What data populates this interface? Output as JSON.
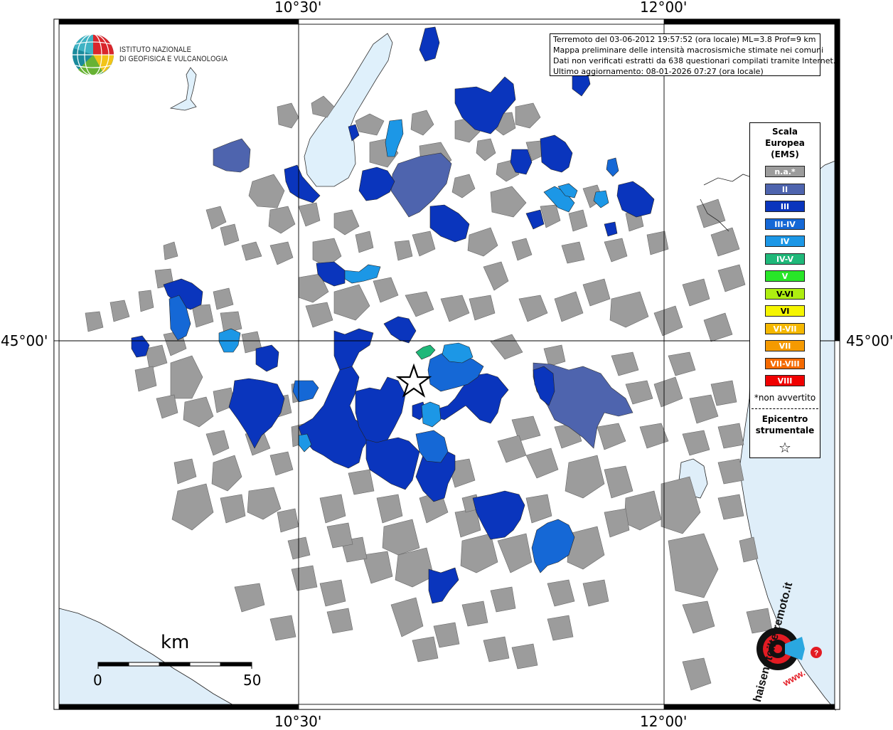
{
  "title_lines": [
    "Terremoto del 03-06-2012 19:57:52 (ora locale) ML=3.8 Prof=9 km",
    "Mappa preliminare delle intensità macrosismiche stimate nei comuni",
    "Dati non verificati estratti da 638 questionari compilati tramite Internet.",
    "Ultimo aggiornamento: 08-01-2026 07:27 (ora locale)"
  ],
  "ingv_logo": {
    "line1": "ISTITUTO NAZIONALE",
    "line2": "DI GEOFISICA E VULCANOLOGIA"
  },
  "axes": {
    "lon_ticks": [
      "10°30'",
      "12°00'"
    ],
    "lat_ticks": [
      "45°00'"
    ]
  },
  "legend": {
    "title_lines": [
      "Scala",
      "Europea",
      "(EMS)"
    ],
    "items": [
      {
        "label": "n.a.*",
        "color": "#9c9c9c"
      },
      {
        "label": "II",
        "color": "#4e64ae"
      },
      {
        "label": "III",
        "color": "#0a35bd"
      },
      {
        "label": "III-IV",
        "color": "#1568d6"
      },
      {
        "label": "IV",
        "color": "#1c97e6"
      },
      {
        "label": "IV-V",
        "color": "#1fb879"
      },
      {
        "label": "V",
        "color": "#28e628"
      },
      {
        "label": "V-VI",
        "color": "#aeee10"
      },
      {
        "label": "VI",
        "color": "#f5f500"
      },
      {
        "label": "VI-VII",
        "color": "#f5b800"
      },
      {
        "label": "VII",
        "color": "#f59a00"
      },
      {
        "label": "VII-VIII",
        "color": "#f56a00"
      },
      {
        "label": "VIII",
        "color": "#f00000"
      }
    ],
    "note": "*non avvertito",
    "epicenter_lines": [
      "Epicentro",
      "strumentale"
    ],
    "epicenter_symbol": "☆"
  },
  "scalebar": {
    "unit": "km",
    "start": "0",
    "end": "50"
  },
  "hsit_logo": {
    "text": "haisentitoilterremoto.it",
    "url_text": "www.",
    "colors": {
      "red": "#e31b23",
      "black": "#111111",
      "blue": "#2aa7e0"
    }
  },
  "colors": {
    "sea": "#dfeef9",
    "lake": "#dff0fb",
    "frame": "#000000"
  }
}
